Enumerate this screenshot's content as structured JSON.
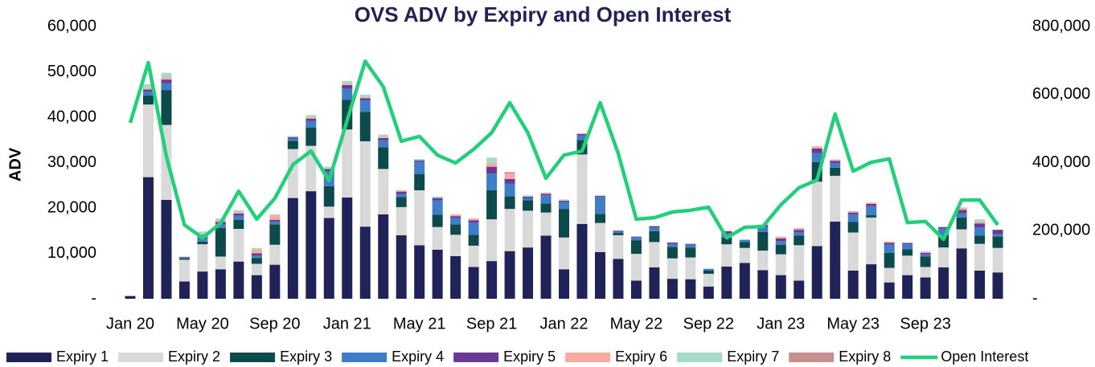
{
  "chart_data": {
    "type": "bar",
    "stacked": true,
    "title": "OVS ADV by Expiry and Open Interest",
    "y_label": "ADV",
    "categories": [
      "Jan 20",
      null,
      null,
      null,
      "May 20",
      null,
      null,
      null,
      "Sep 20",
      null,
      null,
      null,
      "Jan 21",
      null,
      null,
      null,
      "May 21",
      null,
      null,
      null,
      "Sep 21",
      null,
      null,
      null,
      "Jan 22",
      null,
      null,
      null,
      "May 22",
      null,
      null,
      null,
      "Sep 22",
      null,
      null,
      null,
      "Jan 23",
      null,
      null,
      null,
      "May 23",
      null,
      null,
      null,
      "Sep 23",
      null,
      null,
      null,
      null
    ],
    "ylim": [
      0,
      60000
    ],
    "yticks": [
      {
        "value": 0,
        "label": "-"
      },
      {
        "value": 10000,
        "label": "10,000"
      },
      {
        "value": 20000,
        "label": "20,000"
      },
      {
        "value": 30000,
        "label": "30,000"
      },
      {
        "value": 40000,
        "label": "40,000"
      },
      {
        "value": 50000,
        "label": "50,000"
      },
      {
        "value": 60000,
        "label": "60,000"
      }
    ],
    "y2lim": [
      0,
      800000
    ],
    "y2ticks": [
      {
        "value": 0,
        "label": "-"
      },
      {
        "value": 200000,
        "label": "200,000"
      },
      {
        "value": 400000,
        "label": "400,000"
      },
      {
        "value": 600000,
        "label": "600,000"
      },
      {
        "value": 800000,
        "label": "800,000"
      }
    ],
    "legend": "bottom",
    "series": [
      {
        "name": "Expiry 1",
        "color": "#1f2357",
        "values": [
          600,
          26800,
          21800,
          3800,
          6000,
          6500,
          8200,
          5200,
          7500,
          22200,
          23700,
          17800,
          22300,
          15900,
          18600,
          14000,
          11800,
          10800,
          9400,
          7000,
          8300,
          10500,
          11300,
          13900,
          6500,
          16500,
          10300,
          8800,
          4000,
          6900,
          4400,
          4300,
          2700,
          7100,
          7900,
          6300,
          5200,
          4000,
          11600,
          17000,
          6200,
          7600,
          3600,
          5200,
          4700,
          6900,
          11100,
          6200,
          5800
        ]
      },
      {
        "name": "Expiry 2",
        "color": "#d9d9d9",
        "values": [
          0,
          16000,
          16500,
          4800,
          6000,
          2800,
          7200,
          2500,
          4400,
          10800,
          10000,
          2500,
          15000,
          18800,
          10000,
          6200,
          12100,
          5000,
          4700,
          4700,
          9200,
          9300,
          8100,
          5100,
          7000,
          15300,
          6400,
          5200,
          5900,
          5600,
          4500,
          4800,
          2800,
          4900,
          3300,
          4300,
          4600,
          7800,
          14200,
          10100,
          8400,
          10300,
          3200,
          4300,
          2300,
          4400,
          4200,
          5900,
          5400
        ]
      },
      {
        "name": "Expiry 3",
        "color": "#0c4a4b",
        "values": [
          0,
          2000,
          7700,
          300,
          600,
          6300,
          2000,
          1300,
          4500,
          1800,
          4000,
          4500,
          6500,
          6500,
          4800,
          2200,
          3600,
          2700,
          2300,
          2400,
          6400,
          2800,
          2300,
          2000,
          6300,
          3200,
          2000,
          500,
          3000,
          2400,
          2500,
          2200,
          700,
          1500,
          1300,
          4100,
          2100,
          2100,
          4300,
          1800,
          2300,
          500,
          3300,
          1400,
          2300,
          2700,
          2600,
          1800,
          2500
        ]
      },
      {
        "name": "Expiry 4",
        "color": "#3e7dc8",
        "values": [
          0,
          800,
          1500,
          200,
          1200,
          800,
          900,
          500,
          600,
          500,
          1500,
          3200,
          2500,
          2500,
          1500,
          700,
          2700,
          3200,
          1400,
          2700,
          3700,
          2800,
          500,
          1800,
          1500,
          1000,
          3800,
          300,
          600,
          800,
          700,
          600,
          400,
          900,
          500,
          1100,
          800,
          800,
          2000,
          1000,
          1700,
          2000,
          1800,
          1100,
          500,
          1500,
          900,
          1800,
          500
        ]
      },
      {
        "name": "Expiry 5",
        "color": "#6a3996",
        "values": [
          0,
          500,
          800,
          100,
          300,
          500,
          500,
          500,
          400,
          300,
          500,
          600,
          800,
          500,
          500,
          500,
          300,
          500,
          400,
          500,
          1500,
          1000,
          300,
          300,
          300,
          300,
          200,
          200,
          200,
          300,
          300,
          200,
          0,
          500,
          0,
          500,
          600,
          500,
          1000,
          500,
          400,
          500,
          400,
          300,
          300,
          300,
          800,
          900,
          1000
        ]
      },
      {
        "name": "Expiry 6",
        "color": "#f6aaa0",
        "values": [
          0,
          300,
          500,
          0,
          200,
          500,
          300,
          800,
          1000,
          0,
          300,
          0,
          300,
          300,
          300,
          300,
          0,
          0,
          400,
          400,
          800,
          1200,
          0,
          300,
          0,
          200,
          0,
          0,
          0,
          0,
          0,
          0,
          0,
          0,
          0,
          0,
          400,
          400,
          500,
          300,
          300,
          300,
          300,
          0,
          300,
          0,
          500,
          400,
          0
        ]
      },
      {
        "name": "Expiry 7",
        "color": "#a6dcc7",
        "values": [
          0,
          900,
          1000,
          100,
          500,
          300,
          400,
          400,
          200,
          300,
          500,
          500,
          600,
          500,
          500,
          0,
          300,
          300,
          0,
          0,
          1200,
          0,
          300,
          0,
          300,
          0,
          0,
          0,
          0,
          0,
          0,
          0,
          0,
          0,
          0,
          0,
          0,
          0,
          0,
          0,
          0,
          0,
          0,
          0,
          0,
          0,
          0,
          500,
          0
        ]
      },
      {
        "name": "Expiry 8",
        "color": "#c48f8f",
        "values": [
          0,
          0,
          0,
          0,
          0,
          0,
          0,
          0,
          0,
          0,
          0,
          0,
          0,
          0,
          0,
          0,
          0,
          0,
          0,
          0,
          0,
          300,
          0,
          0,
          0,
          0,
          0,
          0,
          0,
          0,
          0,
          0,
          0,
          0,
          0,
          0,
          0,
          0,
          0,
          0,
          0,
          0,
          0,
          0,
          0,
          0,
          0,
          0,
          0
        ]
      },
      {
        "name": "Open Interest",
        "type": "line",
        "axis": "y2",
        "color": "#22d07a",
        "values": [
          517000,
          694000,
          418000,
          217000,
          179000,
          222000,
          316000,
          234000,
          295000,
          394000,
          434000,
          347000,
          524000,
          698000,
          623000,
          463000,
          477000,
          422000,
          399000,
          439000,
          488000,
          576000,
          488000,
          354000,
          422000,
          434000,
          576000,
          427000,
          234000,
          238000,
          255000,
          260000,
          269000,
          179000,
          210000,
          212000,
          276000,
          326000,
          349000,
          543000,
          375000,
          401000,
          411000,
          224000,
          227000,
          175000,
          290000,
          290000,
          217000
        ]
      }
    ]
  }
}
